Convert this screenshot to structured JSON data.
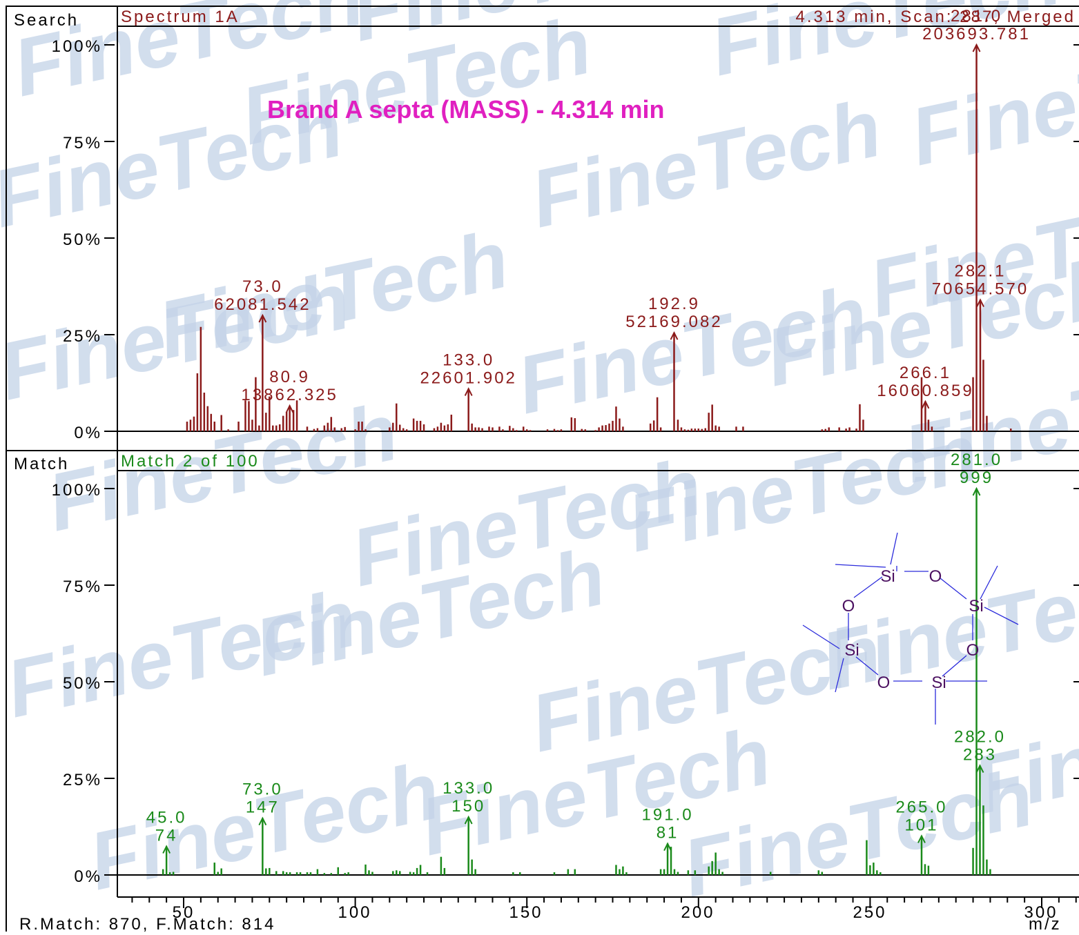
{
  "search_panel": {
    "label": "Search",
    "spectrum_name": "Spectrum 1A",
    "scan_info": "4.313 min, Scan: 287, Merged",
    "annotation": "Brand A septa (MASS) - 4.314 min",
    "color": "#8b1a1a"
  },
  "match_panel": {
    "label": "Match",
    "match_info": "Match 2 of 100",
    "color": "#1a8a1a"
  },
  "footer": {
    "match_scores": "R.Match: 870, F.Match: 814",
    "x_unit": "m/z"
  },
  "y_ticks": [
    "0%",
    "25%",
    "50%",
    "75%",
    "100%"
  ],
  "x_ticks": [
    "50",
    "100",
    "150",
    "200",
    "250",
    "300"
  ],
  "watermark": "FineTech",
  "structure": {
    "atoms": [
      "Si",
      "O",
      "Si",
      "O",
      "Si",
      "O",
      "Si",
      "O"
    ],
    "color_atoms": "#4b1060",
    "color_bonds": "#2a2adb"
  },
  "chart_data": [
    {
      "type": "bar",
      "name": "Search spectrum",
      "xlabel": "m/z",
      "ylabel": "",
      "xlim": [
        30,
        310
      ],
      "ylim": [
        0,
        100
      ],
      "labeled_peaks": [
        {
          "mz": 73.0,
          "label1": "73.0",
          "label2": "62081.542",
          "rel": 30
        },
        {
          "mz": 80.9,
          "label1": "80.9",
          "label2": "13862.325",
          "rel": 6.6
        },
        {
          "mz": 133.0,
          "label1": "133.0",
          "label2": "22601.902",
          "rel": 11
        },
        {
          "mz": 192.9,
          "label1": "192.9",
          "label2": "52169.082",
          "rel": 25.5
        },
        {
          "mz": 266.1,
          "label1": "266.1",
          "label2": "16060.859",
          "rel": 7.7
        },
        {
          "mz": 281.0,
          "label1": "281.0",
          "label2": "203693.781",
          "rel": 100
        },
        {
          "mz": 282.1,
          "label1": "282.1",
          "label2": "70654.570",
          "rel": 34
        }
      ],
      "peaks": [
        [
          51,
          2.5
        ],
        [
          52,
          3
        ],
        [
          53,
          3.8
        ],
        [
          54,
          15
        ],
        [
          55,
          27
        ],
        [
          56,
          10
        ],
        [
          57,
          6.5
        ],
        [
          58,
          4.5
        ],
        [
          59,
          2.5
        ],
        [
          61,
          4.2
        ],
        [
          63,
          0.5
        ],
        [
          66,
          2.5
        ],
        [
          68,
          8
        ],
        [
          69,
          7.8
        ],
        [
          70,
          3
        ],
        [
          71,
          14
        ],
        [
          72,
          1.5
        ],
        [
          73,
          30
        ],
        [
          74,
          4.8
        ],
        [
          75,
          9
        ],
        [
          76,
          1.5
        ],
        [
          77,
          1.5
        ],
        [
          78,
          1.8
        ],
        [
          79,
          4
        ],
        [
          80,
          5
        ],
        [
          80.9,
          6.6
        ],
        [
          82,
          5.5
        ],
        [
          83,
          8
        ],
        [
          86,
          1.2
        ],
        [
          88,
          0.6
        ],
        [
          89,
          0.8
        ],
        [
          91,
          1.5
        ],
        [
          92,
          2.2
        ],
        [
          93,
          3.7
        ],
        [
          94,
          1
        ],
        [
          96,
          0.8
        ],
        [
          97,
          1.1
        ],
        [
          100,
          0.5
        ],
        [
          101,
          2.5
        ],
        [
          102,
          2.5
        ],
        [
          103,
          0.5
        ],
        [
          110,
          1
        ],
        [
          111,
          2.2
        ],
        [
          112,
          7.2
        ],
        [
          113,
          1.7
        ],
        [
          114,
          0.8
        ],
        [
          115,
          0.5
        ],
        [
          117,
          3.3
        ],
        [
          118,
          2.7
        ],
        [
          119,
          2.7
        ],
        [
          120,
          1.8
        ],
        [
          123,
          0.8
        ],
        [
          124,
          1.2
        ],
        [
          125,
          2.2
        ],
        [
          126,
          1.5
        ],
        [
          127,
          1.8
        ],
        [
          128,
          4.3
        ],
        [
          133,
          11
        ],
        [
          134,
          2
        ],
        [
          135,
          1
        ],
        [
          136,
          1
        ],
        [
          137,
          0.8
        ],
        [
          139,
          1.2
        ],
        [
          140,
          1
        ],
        [
          142,
          1.2
        ],
        [
          143,
          0.5
        ],
        [
          145,
          1.4
        ],
        [
          146,
          0.8
        ],
        [
          147,
          0.3
        ],
        [
          149,
          1.2
        ],
        [
          150,
          0.5
        ],
        [
          151,
          0.3
        ],
        [
          156,
          0.5
        ],
        [
          158,
          0.6
        ],
        [
          159,
          0.3
        ],
        [
          160,
          0.5
        ],
        [
          163,
          3.6
        ],
        [
          164,
          3.4
        ],
        [
          166,
          0.6
        ],
        [
          167,
          0.5
        ],
        [
          170,
          0.3
        ],
        [
          171,
          1
        ],
        [
          172,
          1.5
        ],
        [
          173,
          1.6
        ],
        [
          174,
          2
        ],
        [
          175,
          2.7
        ],
        [
          176,
          6.4
        ],
        [
          177,
          3.3
        ],
        [
          178,
          1.2
        ],
        [
          186,
          2
        ],
        [
          187,
          2.8
        ],
        [
          188,
          8.8
        ],
        [
          189,
          1
        ],
        [
          192.9,
          25.5
        ],
        [
          194,
          3
        ],
        [
          195,
          1
        ],
        [
          196,
          0.5
        ],
        [
          197,
          0.4
        ],
        [
          198,
          0.7
        ],
        [
          199,
          0.7
        ],
        [
          200,
          0.7
        ],
        [
          201,
          0.6
        ],
        [
          202,
          0.8
        ],
        [
          203,
          4.8
        ],
        [
          204,
          6.9
        ],
        [
          205,
          1.5
        ],
        [
          206,
          1.2
        ],
        [
          211,
          1.2
        ],
        [
          213,
          1.2
        ],
        [
          236,
          0.5
        ],
        [
          237,
          0.6
        ],
        [
          238,
          1
        ],
        [
          241,
          1
        ],
        [
          243,
          0.7
        ],
        [
          244,
          1
        ],
        [
          246,
          0.7
        ],
        [
          247,
          7
        ],
        [
          248,
          3
        ],
        [
          265,
          14
        ],
        [
          266.1,
          7.7
        ],
        [
          267,
          3
        ],
        [
          268,
          1.2
        ],
        [
          280,
          14
        ],
        [
          281,
          100
        ],
        [
          282.1,
          34
        ],
        [
          283,
          18.5
        ],
        [
          284,
          4
        ],
        [
          291,
          0.7
        ]
      ]
    },
    {
      "type": "bar",
      "name": "Library match spectrum",
      "xlabel": "m/z",
      "ylabel": "",
      "xlim": [
        30,
        310
      ],
      "ylim": [
        0,
        100
      ],
      "labeled_peaks": [
        {
          "mz": 45.0,
          "label1": "45.0",
          "label2": "74",
          "rel": 7.4
        },
        {
          "mz": 73.0,
          "label1": "73.0",
          "label2": "147",
          "rel": 14.7
        },
        {
          "mz": 133.0,
          "label1": "133.0",
          "label2": "150",
          "rel": 15
        },
        {
          "mz": 191.0,
          "label1": "191.0",
          "label2": "81",
          "rel": 8.1
        },
        {
          "mz": 265.0,
          "label1": "265.0",
          "label2": "101",
          "rel": 10.1
        },
        {
          "mz": 281.0,
          "label1": "281.0",
          "label2": "999",
          "rel": 100
        },
        {
          "mz": 282.0,
          "label1": "282.0",
          "label2": "283",
          "rel": 28.3
        }
      ],
      "peaks": [
        [
          44,
          1.5
        ],
        [
          45,
          7.4
        ],
        [
          46,
          0.7
        ],
        [
          47,
          0.8
        ],
        [
          59,
          3.2
        ],
        [
          60,
          0.8
        ],
        [
          61,
          1.7
        ],
        [
          73,
          14.7
        ],
        [
          74,
          1.7
        ],
        [
          75,
          1.8
        ],
        [
          77,
          1
        ],
        [
          79,
          1
        ],
        [
          80,
          0.7
        ],
        [
          81,
          0.7
        ],
        [
          83,
          0.7
        ],
        [
          84,
          0.7
        ],
        [
          86,
          0.7
        ],
        [
          87,
          0.7
        ],
        [
          89,
          1.5
        ],
        [
          91,
          0.5
        ],
        [
          93,
          0.5
        ],
        [
          95,
          2
        ],
        [
          97,
          0.5
        ],
        [
          98,
          0.7
        ],
        [
          103,
          2.7
        ],
        [
          104,
          1.2
        ],
        [
          105,
          0.8
        ],
        [
          111,
          1
        ],
        [
          112,
          1.2
        ],
        [
          113,
          1
        ],
        [
          116,
          0.8
        ],
        [
          117,
          0.7
        ],
        [
          118,
          1.8
        ],
        [
          119,
          2.6
        ],
        [
          121,
          0.7
        ],
        [
          125,
          4.7
        ],
        [
          126,
          1.8
        ],
        [
          133,
          15
        ],
        [
          134,
          4
        ],
        [
          135,
          1.5
        ],
        [
          146,
          0.7
        ],
        [
          148,
          0.7
        ],
        [
          158,
          0.7
        ],
        [
          162,
          1.5
        ],
        [
          164,
          1.5
        ],
        [
          176,
          2.6
        ],
        [
          177,
          1.5
        ],
        [
          178,
          2.2
        ],
        [
          179,
          0.7
        ],
        [
          189,
          1.5
        ],
        [
          190,
          1.5
        ],
        [
          191,
          8.1
        ],
        [
          192,
          7.3
        ],
        [
          193,
          1.5
        ],
        [
          194,
          0.8
        ],
        [
          197,
          1.2
        ],
        [
          199,
          1.2
        ],
        [
          203,
          2.2
        ],
        [
          204,
          3.6
        ],
        [
          205,
          5.8
        ],
        [
          206,
          1.5
        ],
        [
          207,
          0.8
        ],
        [
          221,
          0.8
        ],
        [
          235,
          1.2
        ],
        [
          236,
          0.8
        ],
        [
          249,
          9
        ],
        [
          250,
          2.5
        ],
        [
          251,
          3.2
        ],
        [
          252,
          1.2
        ],
        [
          253,
          0.7
        ],
        [
          265,
          10.1
        ],
        [
          266,
          2.8
        ],
        [
          267,
          2.4
        ],
        [
          280,
          7
        ],
        [
          281,
          100
        ],
        [
          282,
          28.3
        ],
        [
          283,
          18
        ],
        [
          284,
          4
        ],
        [
          285,
          1.5
        ]
      ]
    }
  ]
}
